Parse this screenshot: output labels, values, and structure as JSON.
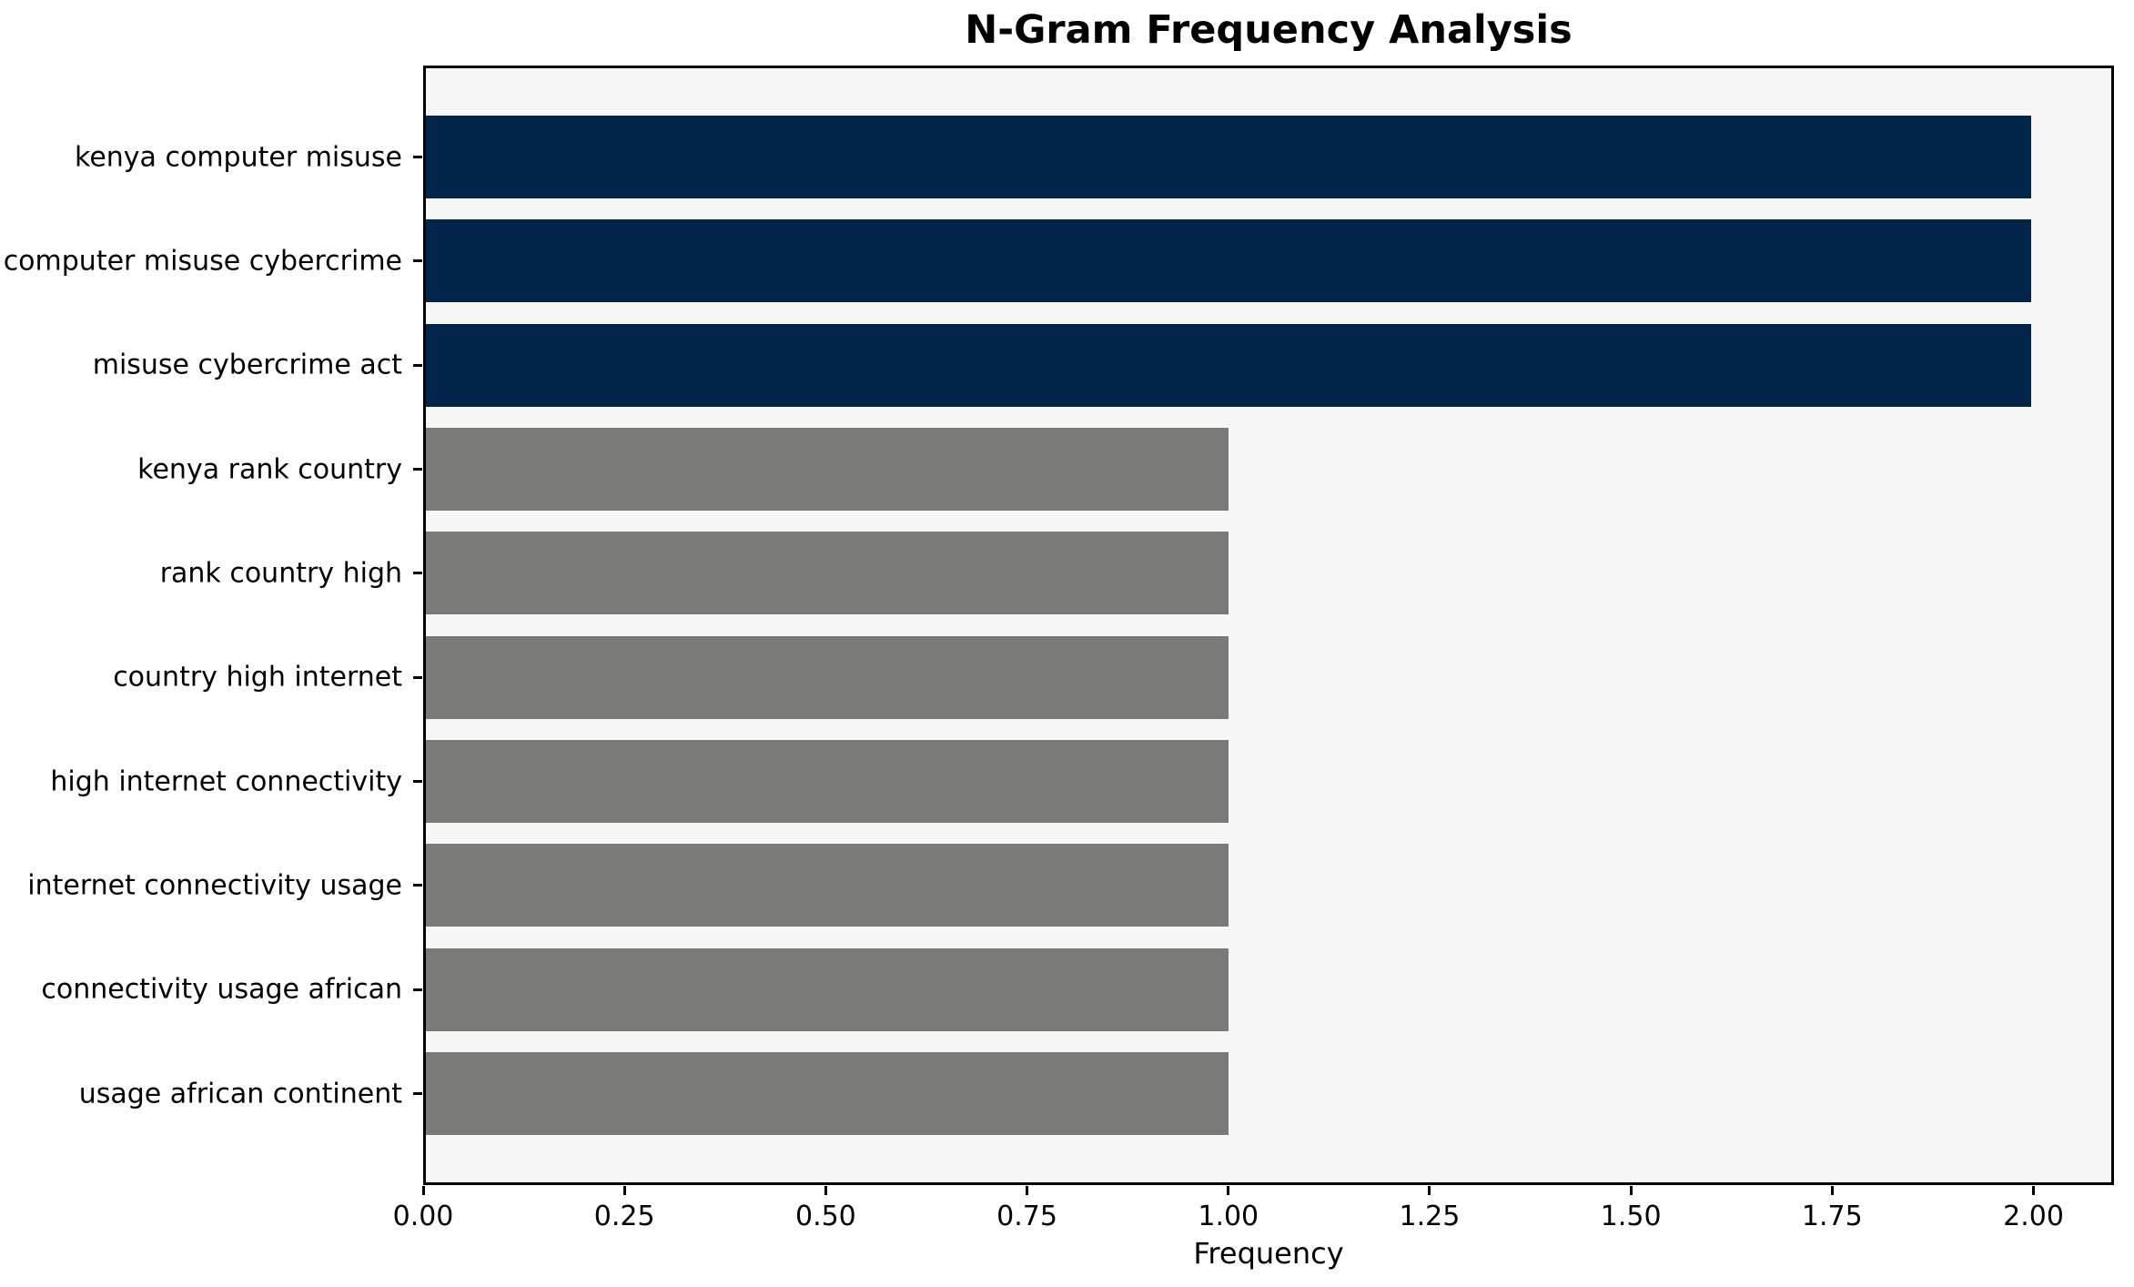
{
  "chart_data": {
    "type": "bar",
    "orientation": "horizontal",
    "title": "N-Gram Frequency Analysis",
    "xlabel": "Frequency",
    "ylabel": "",
    "categories": [
      "kenya computer misuse",
      "computer misuse cybercrime",
      "misuse cybercrime act",
      "kenya rank country",
      "rank country high",
      "country high internet",
      "high internet connectivity",
      "internet connectivity usage",
      "connectivity usage african",
      "usage african continent"
    ],
    "values": [
      2,
      2,
      2,
      1,
      1,
      1,
      1,
      1,
      1,
      1
    ],
    "bar_colors": [
      "#02254c",
      "#02254c",
      "#02254c",
      "#7a7a77",
      "#7a7a77",
      "#7a7a77",
      "#7a7a77",
      "#7a7a77",
      "#7a7a77",
      "#7a7a77"
    ],
    "xlim": [
      0,
      2.1
    ],
    "xticks": [
      "0.00",
      "0.25",
      "0.50",
      "0.75",
      "1.00",
      "1.25",
      "1.50",
      "1.75",
      "2.00"
    ],
    "xtick_values": [
      0,
      0.25,
      0.5,
      0.75,
      1.0,
      1.25,
      1.5,
      1.75,
      2.0
    ],
    "grid": false,
    "legend": null,
    "colors": {
      "highlight_bar": "#02254c",
      "default_bar": "#7a7a77",
      "plot_background": "#f7f7f7",
      "figure_background": "#ffffff",
      "axis": "#000000",
      "text": "#000000"
    }
  }
}
